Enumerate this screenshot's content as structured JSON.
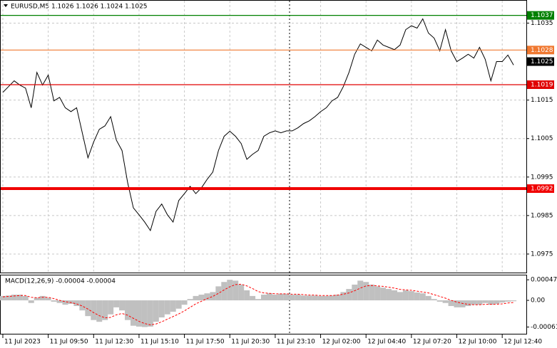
{
  "chart_data": [
    {
      "type": "line",
      "title": "EURUSD,M5 1.1026 1.1026 1.1024 1.1025",
      "color": "#000000",
      "x": [
        0,
        4,
        8,
        12,
        16,
        20,
        24,
        28,
        32,
        36,
        40,
        44,
        48,
        52,
        56,
        60,
        64,
        68,
        72,
        76,
        80,
        84,
        88,
        92,
        96,
        100,
        104,
        108,
        112,
        116,
        120,
        124,
        128,
        132,
        136,
        140,
        144,
        148,
        152,
        156,
        160,
        164,
        168,
        172,
        176,
        180,
        184,
        188,
        192,
        196,
        200,
        204,
        208,
        212,
        216,
        220,
        224,
        228,
        232,
        236,
        240,
        244,
        248,
        252,
        256,
        260,
        264,
        268,
        272,
        276,
        280,
        284,
        288,
        292,
        296,
        300,
        304,
        308,
        312,
        316,
        320,
        324,
        328,
        332,
        336,
        340,
        344,
        348,
        352,
        356,
        360
      ],
      "values": [
        1.1017,
        1.10185,
        1.102,
        1.10189,
        1.10181,
        1.1013,
        1.10222,
        1.10189,
        1.10215,
        1.10148,
        1.10157,
        1.1013,
        1.1012,
        1.1013,
        1.10065,
        1.1,
        1.10041,
        1.10074,
        1.10083,
        1.10107,
        1.10046,
        1.10019,
        1.09935,
        1.0987,
        1.09852,
        1.09833,
        1.09811,
        1.09861,
        1.0988,
        1.09852,
        1.09833,
        1.09889,
        1.09907,
        1.09926,
        1.09907,
        1.09922,
        1.09944,
        1.09963,
        1.10019,
        1.10056,
        1.10069,
        1.10056,
        1.10037,
        1.09996,
        1.10009,
        1.10019,
        1.10056,
        1.10065,
        1.1007,
        1.10065,
        1.1007,
        1.1007,
        1.10078,
        1.10089,
        1.10096,
        1.10107,
        1.1012,
        1.1013,
        1.10148,
        1.10157,
        1.10185,
        1.10222,
        1.10269,
        1.10296,
        1.10287,
        1.10278,
        1.10306,
        1.10293,
        1.10287,
        1.10281,
        1.10293,
        1.10333,
        1.10343,
        1.10337,
        1.10361,
        1.10324,
        1.10311,
        1.10278,
        1.10333,
        1.10278,
        1.1025,
        1.10259,
        1.10269,
        1.10259,
        1.10287,
        1.10256,
        1.102,
        1.1025,
        1.1025,
        1.10267,
        1.10241
      ],
      "xlim": [
        -2,
        369
      ],
      "xticks": [
        {
          "value": 0,
          "label": "11 Jul 2023"
        },
        {
          "value": 32,
          "label": "11 Jul 09:50"
        },
        {
          "value": 64,
          "label": "11 Jul 12:30"
        },
        {
          "value": 96,
          "label": "11 Jul 15:10"
        },
        {
          "value": 128,
          "label": "11 Jul 17:50"
        },
        {
          "value": 160,
          "label": "11 Jul 20:30"
        },
        {
          "value": 192,
          "label": "11 Jul 23:10"
        },
        {
          "value": 224,
          "label": "12 Jul 02:00"
        },
        {
          "value": 256,
          "label": "12 Jul 04:40"
        },
        {
          "value": 288,
          "label": "12 Jul 07:20"
        },
        {
          "value": 320,
          "label": "12 Jul 10:00"
        },
        {
          "value": 352,
          "label": "12 Jul 12:40"
        }
      ],
      "ylim": [
        1.097,
        1.1041
      ],
      "yticks": [
        1.1035,
        1.1015,
        1.1005,
        1.0995,
        1.0985,
        1.0975
      ],
      "grid": true,
      "levels": [
        {
          "value": 1.1037,
          "color": "#008000"
        },
        {
          "value": 1.1028,
          "color": "#f07830"
        },
        {
          "value": 1.1019,
          "color": "#e00000"
        },
        {
          "value": 1.0992,
          "color": "#f00000",
          "thick": true
        }
      ],
      "current_price": {
        "value": 1.1025,
        "color": "#000000"
      }
    },
    {
      "type": "macd",
      "title": "MACD(12,26,9) -0.00004 -0.00004",
      "x": [
        0,
        4,
        8,
        12,
        16,
        20,
        24,
        28,
        32,
        36,
        40,
        44,
        48,
        52,
        56,
        60,
        64,
        68,
        72,
        76,
        80,
        84,
        88,
        92,
        96,
        100,
        104,
        108,
        112,
        116,
        120,
        124,
        128,
        132,
        136,
        140,
        144,
        148,
        152,
        156,
        160,
        164,
        168,
        172,
        176,
        180,
        184,
        188,
        192,
        196,
        200,
        204,
        208,
        212,
        216,
        220,
        224,
        228,
        232,
        236,
        240,
        244,
        248,
        252,
        256,
        260,
        264,
        268,
        272,
        276,
        280,
        284,
        288,
        292,
        296,
        300,
        304,
        308,
        312,
        316,
        320,
        324,
        328,
        332,
        336,
        340,
        344,
        348,
        352,
        356,
        360
      ],
      "histogram": {
        "color": "#c0c0c0",
        "values": [
          0.0001,
          0.00011,
          0.00013,
          0.00013,
          0.0001,
          -6e-05,
          6e-05,
          0.0001,
          6e-05,
          -3e-05,
          -6e-05,
          -0.0001,
          -8e-05,
          -0.00013,
          -0.00023,
          -0.00036,
          -0.00045,
          -0.00049,
          -0.00045,
          -0.00032,
          -0.00016,
          -0.00023,
          -0.00045,
          -0.00058,
          -0.0006,
          -0.00061,
          -0.0006,
          -0.00049,
          -0.00039,
          -0.00032,
          -0.00026,
          -0.00019,
          -0.0001,
          3e-05,
          0.0001,
          0.00013,
          0.00016,
          0.00019,
          0.00032,
          0.00042,
          0.00047,
          0.00045,
          0.00036,
          0.00023,
          0.0001,
          3e-05,
          0.00013,
          0.00016,
          0.00013,
          0.00015,
          0.00015,
          0.00013,
          0.00013,
          0.00011,
          0.00011,
          0.00011,
          0.0001,
          0.0001,
          0.00011,
          0.00013,
          0.00019,
          0.00026,
          0.00036,
          0.00045,
          0.00042,
          0.00036,
          0.00032,
          0.00029,
          0.00026,
          0.00023,
          0.00019,
          0.00023,
          0.00021,
          0.00018,
          0.00016,
          0.0001,
          3e-05,
          -3e-05,
          -6e-05,
          -0.00013,
          -0.00016,
          -0.00016,
          -0.00013,
          -0.0001,
          -0.0001,
          -6e-05,
          -0.0001,
          -8e-05,
          -5e-05,
          -3e-05,
          -2e-05
        ]
      },
      "signal": {
        "color": "#ff0000",
        "values": [
          8e-05,
          9e-05,
          0.0001,
          0.00011,
          0.00011,
          7e-05,
          6e-05,
          7e-05,
          7e-05,
          4e-05,
          0,
          -3e-05,
          -5e-05,
          -8e-05,
          -0.00013,
          -0.0002,
          -0.00028,
          -0.00035,
          -0.0004,
          -0.00039,
          -0.00033,
          -0.0003,
          -0.00034,
          -0.00041,
          -0.00048,
          -0.00053,
          -0.00056,
          -0.00054,
          -0.00049,
          -0.00043,
          -0.00037,
          -0.00031,
          -0.00024,
          -0.00016,
          -8e-05,
          -2e-05,
          4e-05,
          9e-05,
          0.00016,
          0.00024,
          0.00031,
          0.00036,
          0.00037,
          0.00033,
          0.00027,
          0.0002,
          0.00017,
          0.00016,
          0.00015,
          0.00015,
          0.00015,
          0.00014,
          0.00014,
          0.00013,
          0.00012,
          0.00012,
          0.00011,
          0.00011,
          0.00011,
          0.00012,
          0.00014,
          0.00017,
          0.00022,
          0.00028,
          0.00033,
          0.00034,
          0.00033,
          0.00032,
          0.0003,
          0.00028,
          0.00025,
          0.00024,
          0.00023,
          0.00021,
          0.00019,
          0.00017,
          0.00013,
          9e-05,
          5e-05,
          0,
          -4e-05,
          -7e-05,
          -9e-05,
          -0.0001,
          -0.0001,
          -9e-05,
          -9e-05,
          -9e-05,
          -8e-05,
          -6e-05,
          -5e-05
        ]
      },
      "xlim": [
        -2,
        369
      ],
      "ylim": [
        -0.00078,
        0.00057
      ],
      "yticks": [
        0.00047,
        {
          "value": 0,
          "label": "0.00"
        },
        -0.00061
      ]
    }
  ]
}
